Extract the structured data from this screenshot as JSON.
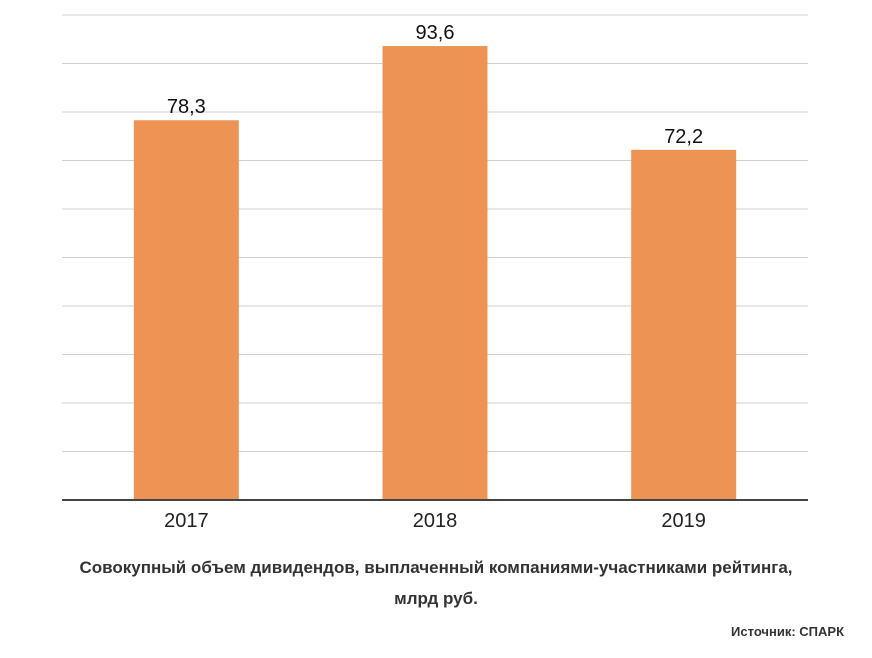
{
  "chart_data": {
    "type": "bar",
    "categories": [
      "2017",
      "2018",
      "2019"
    ],
    "values": [
      78.3,
      93.6,
      72.2
    ],
    "data_labels": [
      "78,3",
      "93,6",
      "72,2"
    ],
    "title": "Совокупный объем дивидендов, выплаченный компаниями-участниками рейтинга,",
    "ylabel": "",
    "xlabel": "",
    "unit": "млрд руб.",
    "ylim": [
      0,
      100
    ],
    "grid": true,
    "legend": "none",
    "bar_color": "#ed9455"
  },
  "source": "Источник: СПАРК"
}
